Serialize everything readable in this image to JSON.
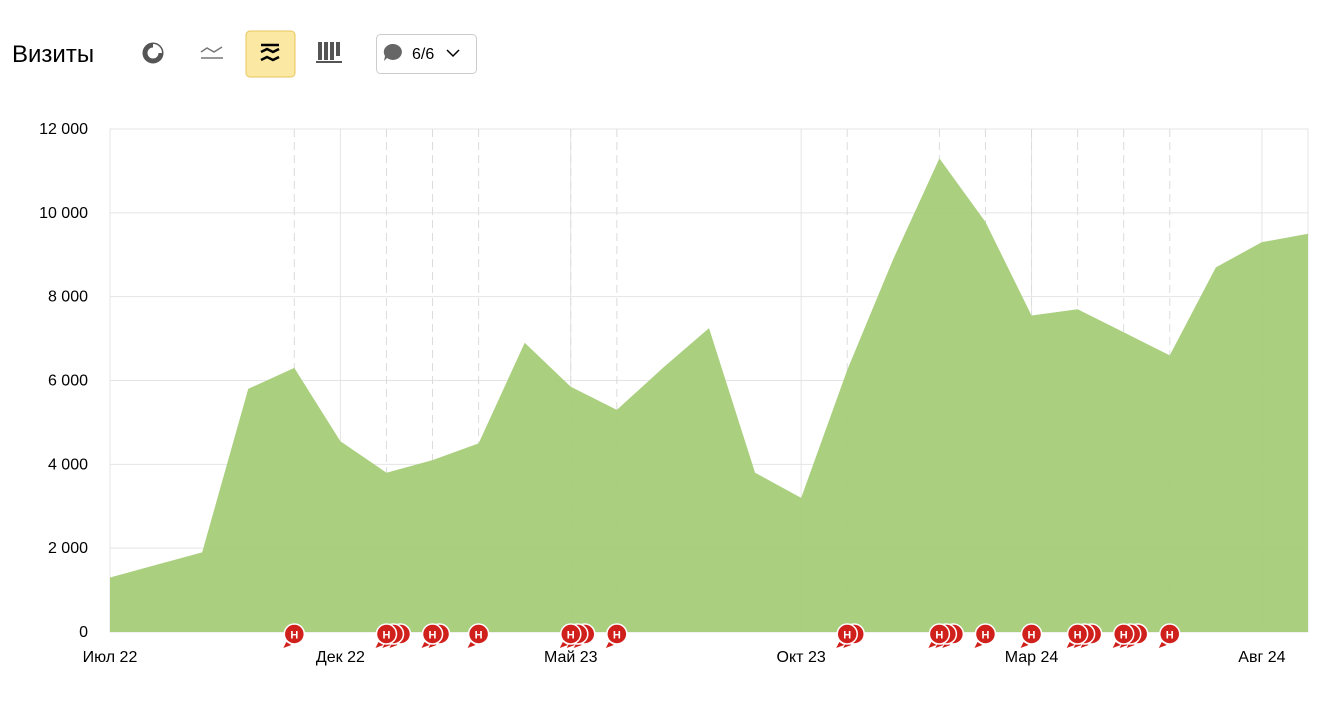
{
  "chart_data": {
    "type": "area",
    "title": "Визиты",
    "annotation_filter": "6/6",
    "categories": [
      "Июл 22",
      null,
      null,
      null,
      null,
      "Дек 22",
      null,
      null,
      null,
      null,
      "Май 23",
      null,
      null,
      null,
      null,
      "Окт 23",
      null,
      null,
      null,
      null,
      "Мар 24",
      null,
      null,
      null,
      null,
      "Авг 24",
      null
    ],
    "values": [
      1300,
      1600,
      1900,
      5800,
      6300,
      4550,
      3800,
      4100,
      4500,
      6900,
      5850,
      5300,
      6300,
      7250,
      3800,
      3200,
      6250,
      8900,
      11300,
      9780,
      7550,
      7700,
      7150,
      6600,
      8700,
      9300,
      9500
    ],
    "color": "#a5cc78",
    "ylim": [
      0,
      12000
    ],
    "yticks": [
      0,
      {
        "value": 2000,
        "label": "2 000"
      },
      {
        "value": 4000,
        "label": "4 000"
      },
      {
        "value": 6000,
        "label": "6 000"
      },
      {
        "value": 8000,
        "label": "8 000"
      },
      {
        "value": 10000,
        "label": "10 000"
      },
      {
        "value": 12000,
        "label": "12 000"
      }
    ],
    "grid": true,
    "annotation_label": "Н",
    "annotation_color": "#d0201c",
    "annotations": [
      {
        "at": 4,
        "count": 1
      },
      {
        "at": 6,
        "count": 3
      },
      {
        "at": 7,
        "count": 2
      },
      {
        "at": 8,
        "count": 1
      },
      {
        "at": 10,
        "count": 3
      },
      {
        "at": 11,
        "count": 1
      },
      {
        "at": 16,
        "count": 2
      },
      {
        "at": 18,
        "count": 3
      },
      {
        "at": 19,
        "count": 1
      },
      {
        "at": 20,
        "count": 1
      },
      {
        "at": 21,
        "count": 3
      },
      {
        "at": 22,
        "count": 3
      },
      {
        "at": 23,
        "count": 1
      }
    ]
  }
}
